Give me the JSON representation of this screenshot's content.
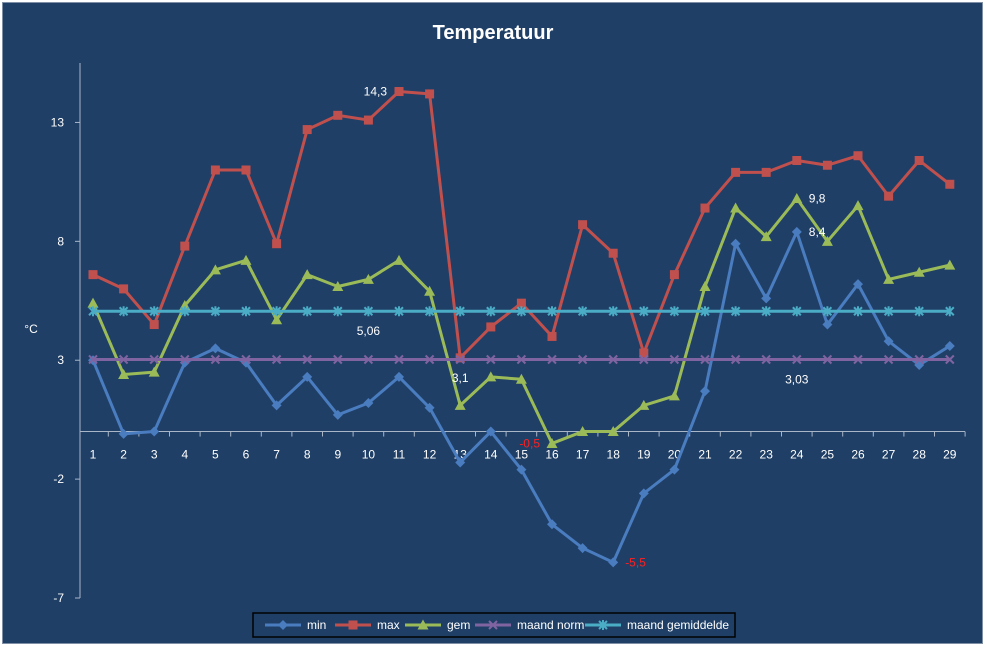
{
  "chart_data": {
    "type": "line",
    "title": "Temperatuur",
    "xlabel": "",
    "ylabel": "°C",
    "ylim": [
      -7,
      15.5
    ],
    "yticks": [
      -7,
      -2,
      3,
      8,
      13
    ],
    "ytick_labels": [
      "-7",
      "-2",
      "3",
      "8",
      "13"
    ],
    "grid": false,
    "legend_position": "bottom",
    "categories": [
      "1",
      "2",
      "3",
      "4",
      "5",
      "6",
      "7",
      "8",
      "9",
      "10",
      "11",
      "12",
      "13",
      "14",
      "15",
      "16",
      "17",
      "18",
      "19",
      "20",
      "21",
      "22",
      "23",
      "24",
      "25",
      "26",
      "27",
      "28",
      "29"
    ],
    "series": [
      {
        "name": "min",
        "color": "#4a7cc0",
        "marker": "diamond",
        "values": [
          3.0,
          -0.1,
          0.0,
          2.9,
          3.5,
          2.9,
          1.1,
          2.3,
          0.7,
          1.2,
          2.3,
          1.0,
          -1.3,
          0.0,
          -1.6,
          -3.9,
          -4.9,
          -5.5,
          -2.6,
          -1.6,
          1.7,
          7.9,
          5.6,
          8.4,
          4.5,
          6.2,
          3.8,
          2.8,
          3.6
        ],
        "colors": {
          "line": "#4a7cc0"
        }
      },
      {
        "name": "max",
        "color": "#c0504d",
        "marker": "square",
        "values": [
          6.6,
          6.0,
          4.5,
          7.8,
          11.0,
          11.0,
          7.9,
          12.7,
          13.3,
          13.1,
          14.3,
          14.2,
          3.1,
          4.4,
          5.4,
          4.0,
          8.7,
          7.5,
          3.3,
          6.6,
          9.4,
          10.9,
          10.9,
          11.4,
          11.2,
          11.6,
          9.9,
          11.4,
          10.4
        ],
        "colors": {
          "line": "#c0504d"
        }
      },
      {
        "name": "gem",
        "color": "#9bbb59",
        "marker": "triangle",
        "values": [
          5.4,
          2.4,
          2.5,
          5.3,
          6.8,
          7.2,
          4.7,
          6.6,
          6.1,
          6.4,
          7.2,
          5.9,
          1.1,
          2.3,
          2.2,
          -0.5,
          0.0,
          0.0,
          1.1,
          1.5,
          6.1,
          9.4,
          8.2,
          9.8,
          8.0,
          9.5,
          6.4,
          6.7,
          7.0
        ],
        "colors": {
          "line": "#9bbb59"
        }
      },
      {
        "name": "maand norm",
        "color": "#8064a2",
        "marker": "x",
        "values": [
          3.03,
          3.03,
          3.03,
          3.03,
          3.03,
          3.03,
          3.03,
          3.03,
          3.03,
          3.03,
          3.03,
          3.03,
          3.03,
          3.03,
          3.03,
          3.03,
          3.03,
          3.03,
          3.03,
          3.03,
          3.03,
          3.03,
          3.03,
          3.03,
          3.03,
          3.03,
          3.03,
          3.03,
          3.03
        ],
        "colors": {
          "line": "#8064a2"
        }
      },
      {
        "name": "maand gemiddelde",
        "color": "#4bacc6",
        "marker": "star",
        "values": [
          5.06,
          5.06,
          5.06,
          5.06,
          5.06,
          5.06,
          5.06,
          5.06,
          5.06,
          5.06,
          5.06,
          5.06,
          5.06,
          5.06,
          5.06,
          5.06,
          5.06,
          5.06,
          5.06,
          5.06,
          5.06,
          5.06,
          5.06,
          5.06,
          5.06,
          5.06,
          5.06,
          5.06,
          5.06
        ],
        "colors": {
          "line": "#4bacc6"
        }
      }
    ],
    "annotations": [
      {
        "text": "14,3",
        "category": "11",
        "value": 14.3,
        "color": "#ffffff",
        "side": "left"
      },
      {
        "text": "5,06",
        "category": "10",
        "value": 5.06,
        "color": "#ffffff",
        "side": "below"
      },
      {
        "text": "3,1",
        "category": "13",
        "value": 3.1,
        "color": "#ffffff",
        "side": "below"
      },
      {
        "text": "-0,5",
        "category": "16",
        "value": -0.5,
        "color": "#ff2020",
        "side": "left"
      },
      {
        "text": "-5,5",
        "category": "18",
        "value": -5.5,
        "color": "#ff2020",
        "side": "right"
      },
      {
        "text": "9,8",
        "category": "24",
        "value": 9.8,
        "color": "#ffffff",
        "side": "right"
      },
      {
        "text": "8,4",
        "category": "24",
        "value": 8.4,
        "color": "#ffffff",
        "side": "right"
      },
      {
        "text": "3,03",
        "category": "24",
        "value": 3.03,
        "color": "#ffffff",
        "side": "below"
      }
    ]
  }
}
